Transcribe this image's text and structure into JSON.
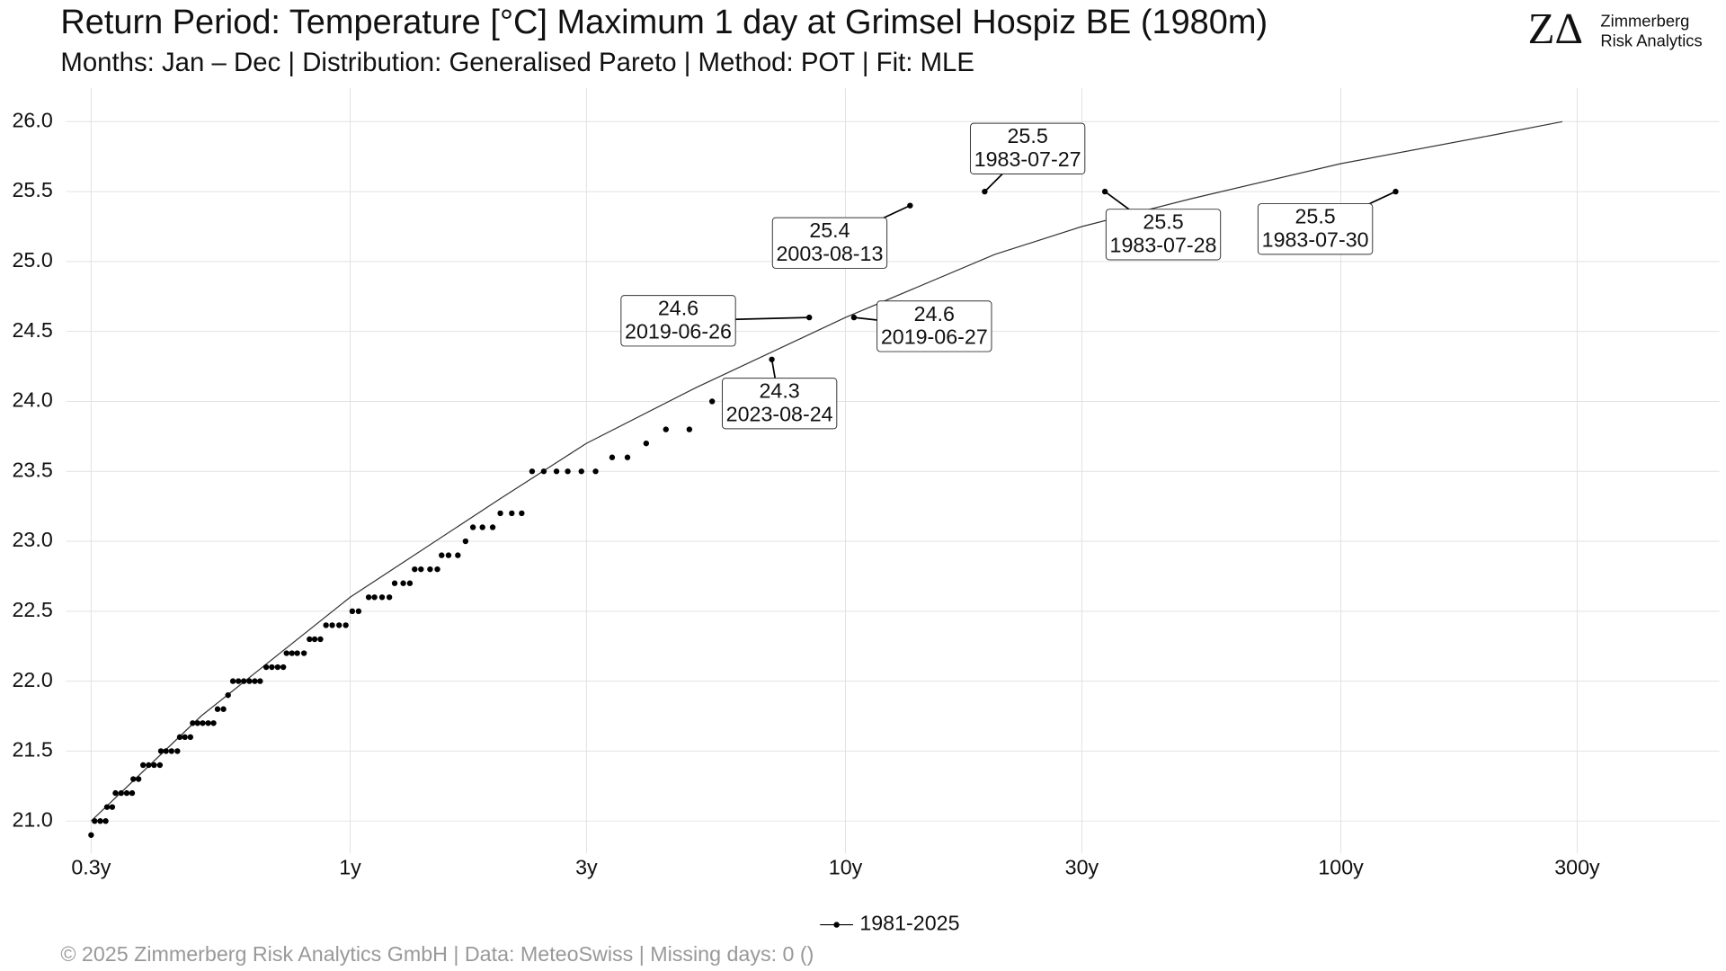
{
  "chart_data": {
    "type": "scatter",
    "title": "Return Period: Temperature [°C] Maximum 1 day at Grimsel Hospiz  BE (1980m)",
    "subtitle": "Months: Jan – Dec | Distribution: Generalised Pareto | Method: POT | Fit: MLE",
    "logo": {
      "mark": "ZΔ",
      "line1": "Zimmerberg",
      "line2": "Risk Analytics"
    },
    "footer": "©  2025 Zimmerberg Risk Analytics GmbH | Data: MeteoSwiss | Missing days: 0 ()",
    "xlog": true,
    "grid": true,
    "legend": "bottom",
    "xlim": [
      0.267,
      581
    ],
    "ylim": [
      20.77,
      26.24
    ],
    "xticks": [
      {
        "value": 0.3,
        "label": "0.3y"
      },
      {
        "value": 1,
        "label": "1y"
      },
      {
        "value": 3,
        "label": "3y"
      },
      {
        "value": 10,
        "label": "10y"
      },
      {
        "value": 30,
        "label": "30y"
      },
      {
        "value": 100,
        "label": "100y"
      },
      {
        "value": 300,
        "label": "300y"
      }
    ],
    "yticks": [
      {
        "value": 21,
        "label": "21.0"
      },
      {
        "value": 21.5,
        "label": "21.5"
      },
      {
        "value": 22,
        "label": "22.0"
      },
      {
        "value": 22.5,
        "label": "22.5"
      },
      {
        "value": 23,
        "label": "23.0"
      },
      {
        "value": 23.5,
        "label": "23.5"
      },
      {
        "value": 24,
        "label": "24.0"
      },
      {
        "value": 24.5,
        "label": "24.5"
      },
      {
        "value": 25,
        "label": "25.0"
      },
      {
        "value": 25.5,
        "label": "25.5"
      },
      {
        "value": 26,
        "label": "26.0"
      }
    ],
    "series": [
      {
        "name": "1981-2025",
        "color": "#000000",
        "x": [
          0.3,
          0.305,
          0.313,
          0.321,
          0.323,
          0.331,
          0.336,
          0.345,
          0.354,
          0.363,
          0.365,
          0.374,
          0.382,
          0.392,
          0.402,
          0.413,
          0.415,
          0.425,
          0.436,
          0.448,
          0.453,
          0.464,
          0.476,
          0.481,
          0.492,
          0.504,
          0.517,
          0.53,
          0.54,
          0.555,
          0.567,
          0.58,
          0.595,
          0.61,
          0.626,
          0.642,
          0.658,
          0.677,
          0.695,
          0.714,
          0.733,
          0.744,
          0.763,
          0.782,
          0.807,
          0.828,
          0.848,
          0.871,
          0.894,
          0.92,
          0.95,
          0.98,
          1.01,
          1.04,
          1.09,
          1.12,
          1.16,
          1.2,
          1.23,
          1.28,
          1.32,
          1.35,
          1.39,
          1.45,
          1.5,
          1.53,
          1.58,
          1.65,
          1.71,
          1.77,
          1.85,
          1.94,
          2.01,
          2.12,
          2.22,
          2.33,
          2.46,
          2.61,
          2.75,
          2.93,
          3.13,
          3.38,
          3.63,
          3.96,
          4.34,
          4.84,
          5.38,
          7.1,
          8.45,
          10.4,
          13.5,
          19.1,
          33.4,
          129
        ],
        "values": [
          20.9,
          21.0,
          21.0,
          21.0,
          21.1,
          21.1,
          21.2,
          21.2,
          21.2,
          21.2,
          21.3,
          21.3,
          21.4,
          21.4,
          21.4,
          21.4,
          21.5,
          21.5,
          21.5,
          21.5,
          21.6,
          21.6,
          21.6,
          21.7,
          21.7,
          21.7,
          21.7,
          21.7,
          21.8,
          21.8,
          21.9,
          22.0,
          22.0,
          22.0,
          22.0,
          22.0,
          22.0,
          22.1,
          22.1,
          22.1,
          22.1,
          22.2,
          22.2,
          22.2,
          22.2,
          22.3,
          22.3,
          22.3,
          22.4,
          22.4,
          22.4,
          22.4,
          22.5,
          22.5,
          22.6,
          22.6,
          22.6,
          22.6,
          22.7,
          22.7,
          22.7,
          22.8,
          22.8,
          22.8,
          22.8,
          22.9,
          22.9,
          22.9,
          23.0,
          23.1,
          23.1,
          23.1,
          23.2,
          23.2,
          23.2,
          23.5,
          23.5,
          23.5,
          23.5,
          23.5,
          23.5,
          23.6,
          23.6,
          23.7,
          23.8,
          23.8,
          24.0,
          24.3,
          24.6,
          24.6,
          25.4,
          25.5,
          25.5,
          25.5
        ],
        "dates": [
          null,
          null,
          null,
          null,
          null,
          null,
          null,
          null,
          null,
          null,
          null,
          null,
          null,
          null,
          null,
          null,
          null,
          null,
          null,
          null,
          null,
          null,
          null,
          null,
          null,
          null,
          null,
          null,
          null,
          null,
          null,
          null,
          null,
          null,
          null,
          null,
          null,
          null,
          null,
          null,
          null,
          null,
          null,
          null,
          null,
          null,
          null,
          null,
          null,
          null,
          null,
          null,
          null,
          null,
          null,
          null,
          null,
          null,
          null,
          null,
          null,
          null,
          null,
          null,
          null,
          null,
          null,
          null,
          null,
          null,
          null,
          null,
          null,
          null,
          null,
          null,
          null,
          null,
          null,
          null,
          null,
          null,
          null,
          null,
          null,
          null,
          null,
          "2023-08-24",
          "2019-06-26",
          "2019-06-27",
          "2003-08-13",
          "1983-07-27",
          "1983-07-28",
          "1983-07-30"
        ]
      }
    ],
    "fit": {
      "color": "#333333",
      "x": [
        0.3,
        0.5,
        1,
        2,
        3,
        5,
        10,
        20,
        30,
        50,
        100,
        200,
        280
      ],
      "values": [
        21.0,
        21.75,
        22.6,
        23.3,
        23.7,
        24.1,
        24.6,
        25.05,
        25.25,
        25.45,
        25.7,
        25.9,
        26.0
      ]
    }
  }
}
